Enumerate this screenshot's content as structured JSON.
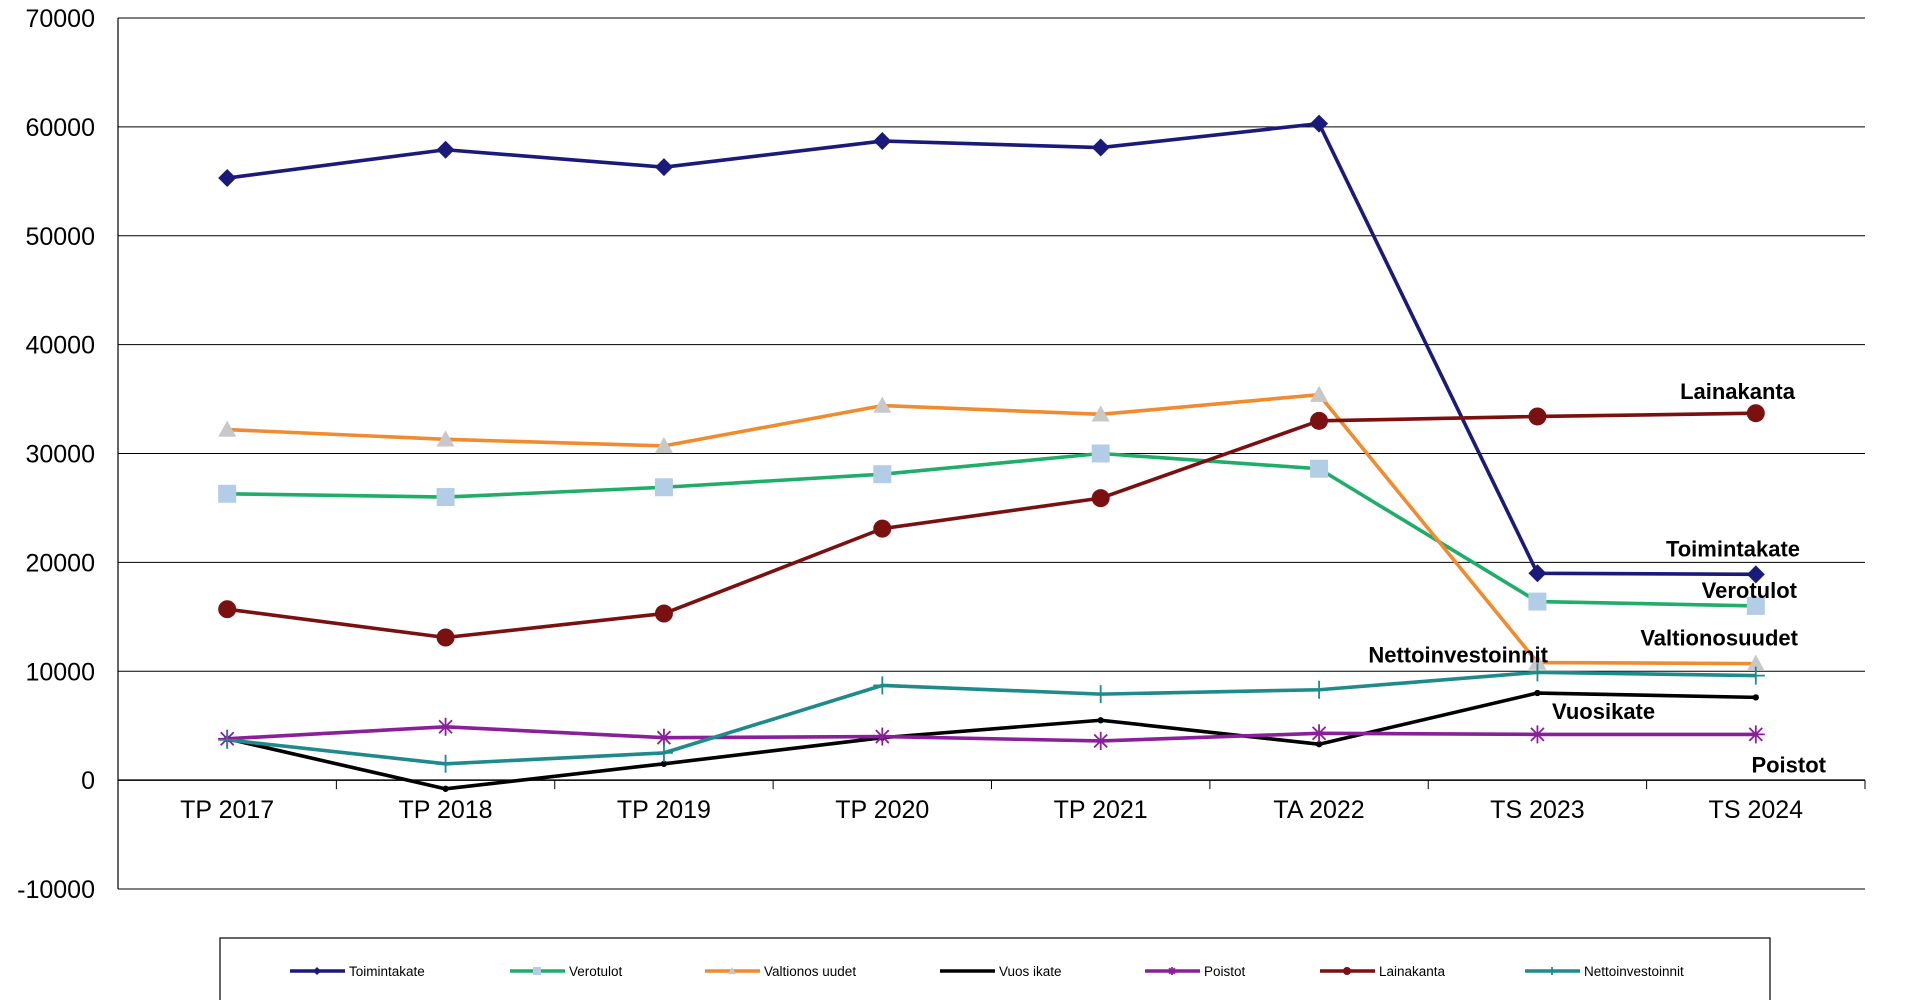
{
  "chart_data": {
    "type": "line",
    "title": "",
    "xlabel": "",
    "ylabel": "",
    "categories": [
      "TP 2017",
      "TP 2018",
      "TP 2019",
      "TP 2020",
      "TP 2021",
      "TA 2022",
      "TS 2023",
      "TS 2024"
    ],
    "ylim": [
      -10000,
      70000
    ],
    "yticks": [
      -10000,
      0,
      10000,
      20000,
      30000,
      40000,
      50000,
      60000,
      70000
    ],
    "grid": true,
    "legend_position": "bottom",
    "series": [
      {
        "name": "Toimintakate",
        "label": "Toimintakate",
        "color": "#1a1a7a",
        "marker": "diamond",
        "values": [
          55300,
          57900,
          56300,
          58700,
          58100,
          60300,
          19000,
          18900
        ]
      },
      {
        "name": "Verotulot",
        "label": "Verotulot",
        "color": "#1fae6a",
        "marker": "square",
        "marker_color": "#b4cde6",
        "values": [
          26300,
          26000,
          26900,
          28100,
          30000,
          28600,
          16400,
          16000
        ]
      },
      {
        "name": "Valtionos uudet",
        "label": "Valtionosuudet",
        "color": "#f28a2e",
        "marker": "triangle",
        "marker_color": "#c8c8c8",
        "values": [
          32200,
          31300,
          30700,
          34400,
          33600,
          35400,
          10800,
          10700
        ]
      },
      {
        "name": "Vuos ikate",
        "label": "Vuosikate",
        "color": "#000000",
        "marker": "small",
        "values": [
          3800,
          -800,
          1500,
          3900,
          5500,
          3300,
          8000,
          7600
        ]
      },
      {
        "name": "Poistot",
        "label": "Poistot",
        "color": "#8a1f9a",
        "marker": "star",
        "values": [
          3800,
          4900,
          3900,
          4000,
          3600,
          4300,
          4200,
          4200
        ]
      },
      {
        "name": "Lainakanta",
        "label": "Lainakanta",
        "color": "#7a1010",
        "marker": "circle",
        "values": [
          15700,
          13100,
          15300,
          23100,
          25900,
          33000,
          33400,
          33700
        ]
      },
      {
        "name": "Nettoinvestoinnit",
        "label": "Nettoinvestoinnit",
        "color": "#1f8a8a",
        "marker": "plus",
        "values": [
          3700,
          1500,
          2500,
          8700,
          7900,
          8300,
          9900,
          9600
        ]
      }
    ]
  }
}
